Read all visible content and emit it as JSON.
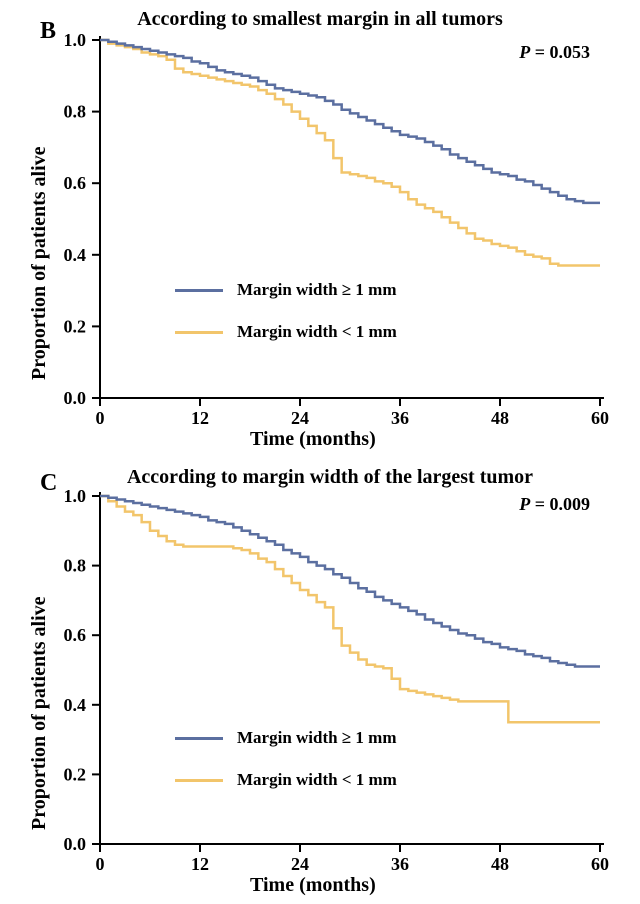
{
  "colors": {
    "series_ge1": "#5b6fa0",
    "series_lt1": "#f2c56b",
    "axis": "#000000",
    "background": "#ffffff"
  },
  "typography": {
    "title_fontsize": 20,
    "label_fontsize": 20,
    "tick_fontsize": 18,
    "legend_fontsize": 17,
    "panel_label_fontsize": 24,
    "font_family": "Times New Roman"
  },
  "panel_b": {
    "panel_label": "B",
    "title": "According to smallest margin in all tumors",
    "p_value": "P = 0.053",
    "xlabel": "Time (months)",
    "ylabel": "Proportion of patients alive",
    "xlim": [
      0,
      60
    ],
    "ylim": [
      0.0,
      1.0
    ],
    "xticks": [
      0,
      12,
      24,
      36,
      48,
      60
    ],
    "yticks": [
      0.0,
      0.2,
      0.4,
      0.6,
      0.8,
      1.0
    ],
    "legend": {
      "items": [
        {
          "label": "Margin width ≥ 1 mm",
          "color": "#5b6fa0"
        },
        {
          "label": "Margin width < 1 mm",
          "color": "#f2c56b"
        }
      ]
    },
    "series_ge1": {
      "color": "#5b6fa0",
      "line_width": 2.5,
      "points": [
        [
          0,
          1.0
        ],
        [
          1,
          0.995
        ],
        [
          2,
          0.99
        ],
        [
          3,
          0.985
        ],
        [
          4,
          0.98
        ],
        [
          5,
          0.975
        ],
        [
          6,
          0.97
        ],
        [
          7,
          0.965
        ],
        [
          8,
          0.96
        ],
        [
          9,
          0.955
        ],
        [
          10,
          0.95
        ],
        [
          11,
          0.94
        ],
        [
          12,
          0.935
        ],
        [
          13,
          0.925
        ],
        [
          14,
          0.915
        ],
        [
          15,
          0.91
        ],
        [
          16,
          0.905
        ],
        [
          17,
          0.9
        ],
        [
          18,
          0.895
        ],
        [
          19,
          0.885
        ],
        [
          20,
          0.875
        ],
        [
          21,
          0.865
        ],
        [
          22,
          0.86
        ],
        [
          23,
          0.855
        ],
        [
          24,
          0.85
        ],
        [
          25,
          0.845
        ],
        [
          26,
          0.84
        ],
        [
          27,
          0.83
        ],
        [
          28,
          0.82
        ],
        [
          29,
          0.805
        ],
        [
          30,
          0.795
        ],
        [
          31,
          0.785
        ],
        [
          32,
          0.775
        ],
        [
          33,
          0.765
        ],
        [
          34,
          0.755
        ],
        [
          35,
          0.745
        ],
        [
          36,
          0.735
        ],
        [
          37,
          0.73
        ],
        [
          38,
          0.725
        ],
        [
          39,
          0.715
        ],
        [
          40,
          0.705
        ],
        [
          41,
          0.695
        ],
        [
          42,
          0.68
        ],
        [
          43,
          0.67
        ],
        [
          44,
          0.66
        ],
        [
          45,
          0.65
        ],
        [
          46,
          0.64
        ],
        [
          47,
          0.63
        ],
        [
          48,
          0.625
        ],
        [
          49,
          0.62
        ],
        [
          50,
          0.61
        ],
        [
          51,
          0.605
        ],
        [
          52,
          0.595
        ],
        [
          53,
          0.585
        ],
        [
          54,
          0.575
        ],
        [
          55,
          0.565
        ],
        [
          56,
          0.555
        ],
        [
          57,
          0.55
        ],
        [
          58,
          0.545
        ],
        [
          59,
          0.545
        ],
        [
          60,
          0.545
        ]
      ]
    },
    "series_lt1": {
      "color": "#f2c56b",
      "line_width": 2.5,
      "points": [
        [
          0,
          1.0
        ],
        [
          1,
          0.99
        ],
        [
          2,
          0.985
        ],
        [
          3,
          0.98
        ],
        [
          4,
          0.975
        ],
        [
          5,
          0.965
        ],
        [
          6,
          0.96
        ],
        [
          7,
          0.955
        ],
        [
          8,
          0.945
        ],
        [
          9,
          0.92
        ],
        [
          10,
          0.91
        ],
        [
          11,
          0.905
        ],
        [
          12,
          0.9
        ],
        [
          13,
          0.895
        ],
        [
          14,
          0.89
        ],
        [
          15,
          0.885
        ],
        [
          16,
          0.88
        ],
        [
          17,
          0.875
        ],
        [
          18,
          0.87
        ],
        [
          19,
          0.86
        ],
        [
          20,
          0.85
        ],
        [
          21,
          0.835
        ],
        [
          22,
          0.82
        ],
        [
          23,
          0.8
        ],
        [
          24,
          0.78
        ],
        [
          25,
          0.76
        ],
        [
          26,
          0.74
        ],
        [
          27,
          0.72
        ],
        [
          28,
          0.67
        ],
        [
          29,
          0.63
        ],
        [
          30,
          0.625
        ],
        [
          31,
          0.62
        ],
        [
          32,
          0.615
        ],
        [
          33,
          0.605
        ],
        [
          34,
          0.6
        ],
        [
          35,
          0.59
        ],
        [
          36,
          0.575
        ],
        [
          37,
          0.555
        ],
        [
          38,
          0.54
        ],
        [
          39,
          0.53
        ],
        [
          40,
          0.52
        ],
        [
          41,
          0.505
        ],
        [
          42,
          0.49
        ],
        [
          43,
          0.475
        ],
        [
          44,
          0.46
        ],
        [
          45,
          0.445
        ],
        [
          46,
          0.44
        ],
        [
          47,
          0.43
        ],
        [
          48,
          0.425
        ],
        [
          49,
          0.42
        ],
        [
          50,
          0.41
        ],
        [
          51,
          0.4
        ],
        [
          52,
          0.395
        ],
        [
          53,
          0.39
        ],
        [
          54,
          0.375
        ],
        [
          55,
          0.37
        ],
        [
          56,
          0.37
        ],
        [
          57,
          0.37
        ],
        [
          58,
          0.37
        ],
        [
          59,
          0.37
        ],
        [
          60,
          0.37
        ]
      ]
    }
  },
  "panel_c": {
    "panel_label": "C",
    "title": "According to margin width of the largest tumor",
    "p_value": "P = 0.009",
    "xlabel": "Time (months)",
    "ylabel": "Proportion of patients alive",
    "xlim": [
      0,
      60
    ],
    "ylim": [
      0.0,
      1.0
    ],
    "xticks": [
      0,
      12,
      24,
      36,
      48,
      60
    ],
    "yticks": [
      0.0,
      0.2,
      0.4,
      0.6,
      0.8,
      1.0
    ],
    "legend": {
      "items": [
        {
          "label": "Margin width ≥ 1 mm",
          "color": "#5b6fa0"
        },
        {
          "label": "Margin width < 1 mm",
          "color": "#f2c56b"
        }
      ]
    },
    "series_ge1": {
      "color": "#5b6fa0",
      "line_width": 2.5,
      "points": [
        [
          0,
          1.0
        ],
        [
          1,
          0.995
        ],
        [
          2,
          0.99
        ],
        [
          3,
          0.985
        ],
        [
          4,
          0.98
        ],
        [
          5,
          0.975
        ],
        [
          6,
          0.97
        ],
        [
          7,
          0.965
        ],
        [
          8,
          0.96
        ],
        [
          9,
          0.955
        ],
        [
          10,
          0.95
        ],
        [
          11,
          0.945
        ],
        [
          12,
          0.94
        ],
        [
          13,
          0.93
        ],
        [
          14,
          0.925
        ],
        [
          15,
          0.92
        ],
        [
          16,
          0.91
        ],
        [
          17,
          0.9
        ],
        [
          18,
          0.89
        ],
        [
          19,
          0.88
        ],
        [
          20,
          0.87
        ],
        [
          21,
          0.86
        ],
        [
          22,
          0.845
        ],
        [
          23,
          0.835
        ],
        [
          24,
          0.825
        ],
        [
          25,
          0.81
        ],
        [
          26,
          0.8
        ],
        [
          27,
          0.79
        ],
        [
          28,
          0.775
        ],
        [
          29,
          0.765
        ],
        [
          30,
          0.75
        ],
        [
          31,
          0.735
        ],
        [
          32,
          0.725
        ],
        [
          33,
          0.71
        ],
        [
          34,
          0.7
        ],
        [
          35,
          0.69
        ],
        [
          36,
          0.68
        ],
        [
          37,
          0.67
        ],
        [
          38,
          0.66
        ],
        [
          39,
          0.645
        ],
        [
          40,
          0.635
        ],
        [
          41,
          0.625
        ],
        [
          42,
          0.615
        ],
        [
          43,
          0.605
        ],
        [
          44,
          0.6
        ],
        [
          45,
          0.59
        ],
        [
          46,
          0.58
        ],
        [
          47,
          0.575
        ],
        [
          48,
          0.565
        ],
        [
          49,
          0.56
        ],
        [
          50,
          0.555
        ],
        [
          51,
          0.545
        ],
        [
          52,
          0.54
        ],
        [
          53,
          0.535
        ],
        [
          54,
          0.525
        ],
        [
          55,
          0.52
        ],
        [
          56,
          0.515
        ],
        [
          57,
          0.51
        ],
        [
          58,
          0.51
        ],
        [
          59,
          0.51
        ],
        [
          60,
          0.51
        ]
      ]
    },
    "series_lt1": {
      "color": "#f2c56b",
      "line_width": 2.5,
      "points": [
        [
          0,
          1.0
        ],
        [
          1,
          0.985
        ],
        [
          2,
          0.97
        ],
        [
          3,
          0.955
        ],
        [
          4,
          0.945
        ],
        [
          5,
          0.925
        ],
        [
          6,
          0.9
        ],
        [
          7,
          0.885
        ],
        [
          8,
          0.87
        ],
        [
          9,
          0.86
        ],
        [
          10,
          0.855
        ],
        [
          11,
          0.855
        ],
        [
          12,
          0.855
        ],
        [
          13,
          0.855
        ],
        [
          14,
          0.855
        ],
        [
          15,
          0.855
        ],
        [
          16,
          0.85
        ],
        [
          17,
          0.845
        ],
        [
          18,
          0.835
        ],
        [
          19,
          0.82
        ],
        [
          20,
          0.81
        ],
        [
          21,
          0.79
        ],
        [
          22,
          0.77
        ],
        [
          23,
          0.75
        ],
        [
          24,
          0.73
        ],
        [
          25,
          0.715
        ],
        [
          26,
          0.695
        ],
        [
          27,
          0.68
        ],
        [
          28,
          0.62
        ],
        [
          29,
          0.57
        ],
        [
          30,
          0.55
        ],
        [
          31,
          0.53
        ],
        [
          32,
          0.515
        ],
        [
          33,
          0.51
        ],
        [
          34,
          0.505
        ],
        [
          35,
          0.475
        ],
        [
          36,
          0.445
        ],
        [
          37,
          0.44
        ],
        [
          38,
          0.435
        ],
        [
          39,
          0.43
        ],
        [
          40,
          0.425
        ],
        [
          41,
          0.42
        ],
        [
          42,
          0.415
        ],
        [
          43,
          0.41
        ],
        [
          44,
          0.41
        ],
        [
          45,
          0.41
        ],
        [
          46,
          0.41
        ],
        [
          47,
          0.41
        ],
        [
          48,
          0.41
        ],
        [
          49,
          0.35
        ],
        [
          50,
          0.35
        ],
        [
          51,
          0.35
        ],
        [
          52,
          0.35
        ],
        [
          53,
          0.35
        ],
        [
          54,
          0.35
        ],
        [
          55,
          0.35
        ],
        [
          56,
          0.35
        ],
        [
          57,
          0.35
        ],
        [
          58,
          0.35
        ],
        [
          59,
          0.35
        ],
        [
          60,
          0.35
        ]
      ]
    }
  }
}
